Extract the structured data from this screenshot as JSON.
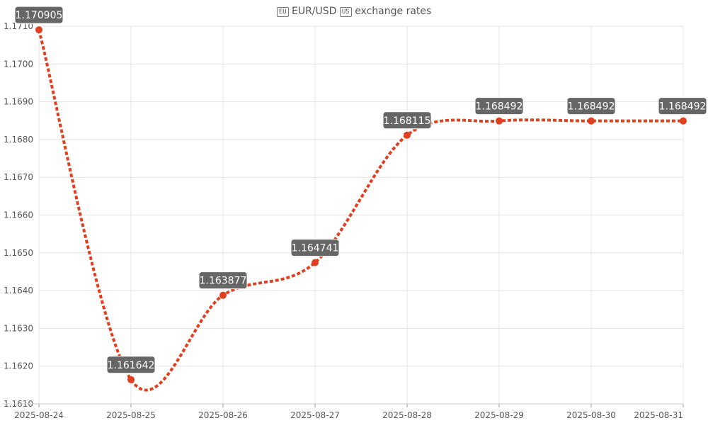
{
  "chart_data": {
    "type": "line",
    "title_parts": {
      "flag_left": "EU",
      "pair": "EUR/USD",
      "flag_right": "US",
      "suffix": "exchange rates"
    },
    "categories": [
      "2025-08-24",
      "2025-08-25",
      "2025-08-26",
      "2025-08-27",
      "2025-08-28",
      "2025-08-29",
      "2025-08-30",
      "2025-08-31"
    ],
    "series": [
      {
        "values": [
          1.170905,
          1.161642,
          1.163877,
          1.164741,
          1.168115,
          1.168492,
          1.168492,
          1.168492
        ],
        "labels": [
          "1.170905",
          "1.161642",
          "1.163877",
          "1.164741",
          "1.168115",
          "1.168492",
          "1.168492",
          "1.168492"
        ]
      }
    ],
    "ylim": [
      1.161,
      1.171
    ],
    "yticks": [
      1.161,
      1.162,
      1.163,
      1.164,
      1.165,
      1.166,
      1.167,
      1.168,
      1.169,
      1.17,
      1.171
    ],
    "ytick_labels": [
      "1.1610",
      "1.1620",
      "1.1630",
      "1.1640",
      "1.1650",
      "1.1660",
      "1.1670",
      "1.1680",
      "1.1690",
      "1.1700",
      "1.1710"
    ],
    "grid": true,
    "legend": "none",
    "colors": {
      "line": "#e0401f",
      "point": "#e0401f",
      "label_bg": "#666666",
      "label_text": "#ffffff",
      "grid": "#e3e3e3",
      "axis_text": "#555555"
    }
  }
}
